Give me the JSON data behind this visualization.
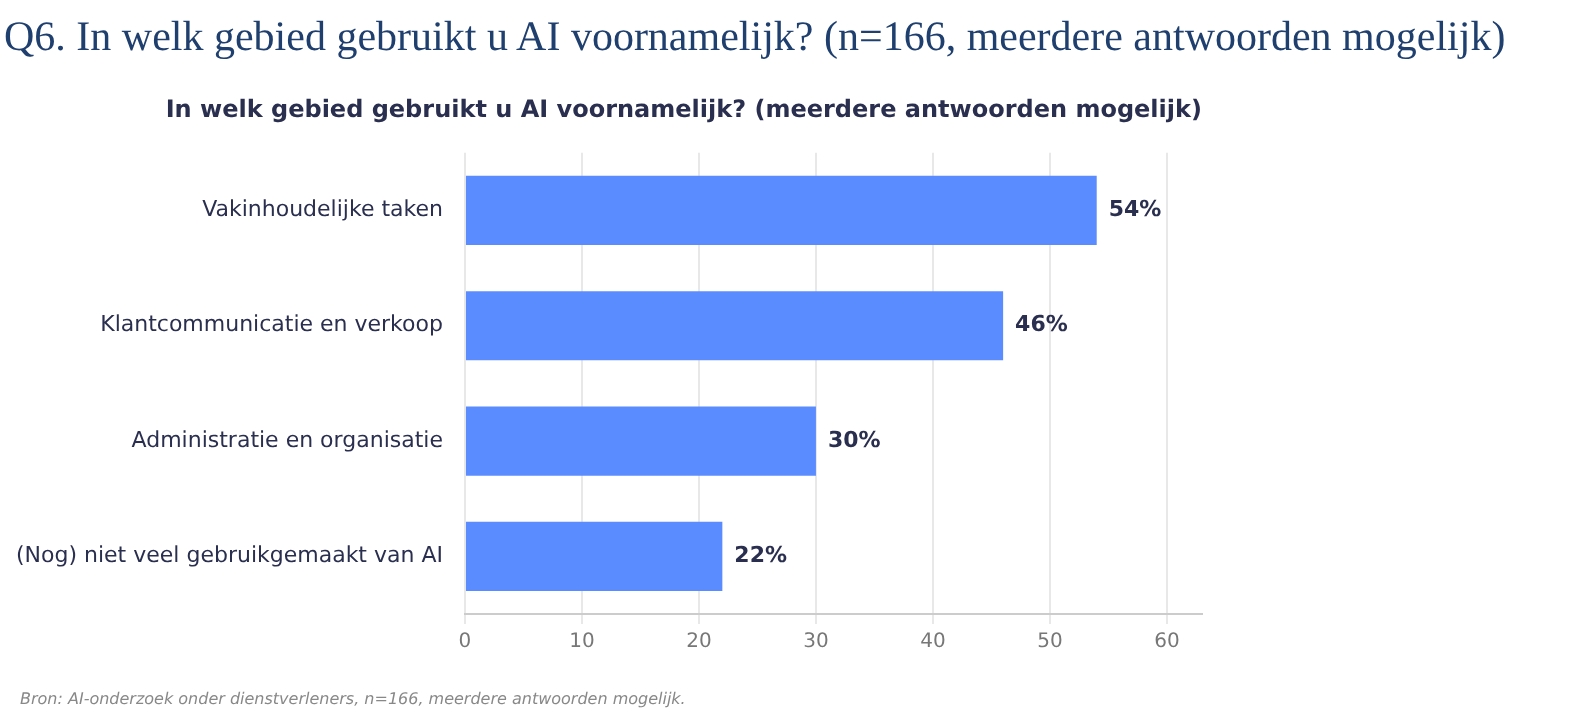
{
  "chart_data": {
    "type": "bar",
    "orientation": "horizontal",
    "title": "Q6. In welk gebied gebruikt u AI voornamelijk? (n=166, meerdere antwoorden mogelijk)",
    "subtitle": "In welk gebied gebruikt u AI voornamelijk? (meerdere antwoorden mogelijk)",
    "categories": [
      "Vakinhoudelijke taken",
      "Klantcommunicatie en verkoop",
      "Administratie en organisatie",
      "(Nog) niet veel gebruikgemaakt van AI"
    ],
    "values": [
      54,
      46,
      30,
      22
    ],
    "value_labels": [
      "54%",
      "46%",
      "30%",
      "22%"
    ],
    "color": "#5b8cff",
    "xlim": [
      0,
      63
    ],
    "xticks": [
      0,
      10,
      20,
      30,
      40,
      50,
      60
    ],
    "grid": "x",
    "legend": false,
    "annotations": [
      "Bron: AI-onderzoek onder dienstverleners, n=166, meerdere antwoorden mogelijk."
    ]
  }
}
